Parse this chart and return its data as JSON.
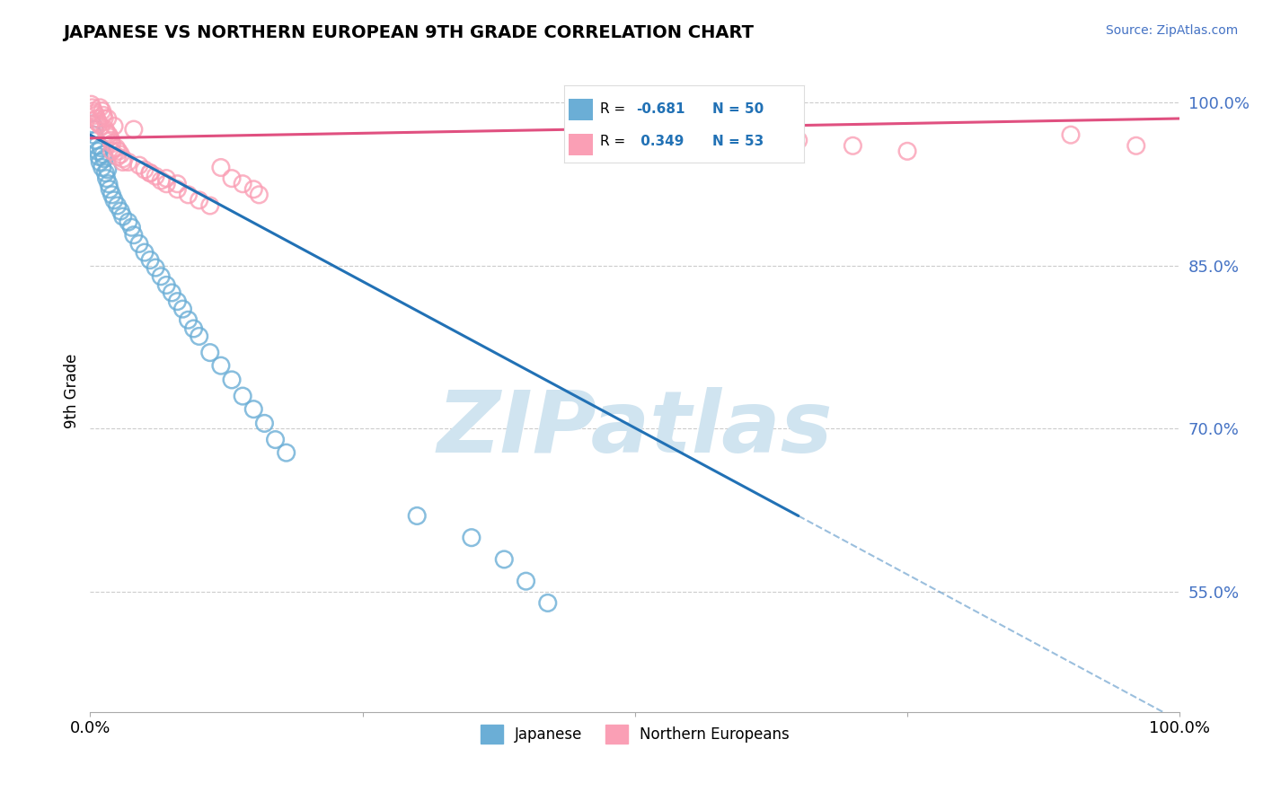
{
  "title": "JAPANESE VS NORTHERN EUROPEAN 9TH GRADE CORRELATION CHART",
  "source": "Source: ZipAtlas.com",
  "ylabel": "9th Grade",
  "xlim": [
    0.0,
    1.0
  ],
  "ylim": [
    0.44,
    1.03
  ],
  "yticks": [
    0.55,
    0.7,
    0.85,
    1.0
  ],
  "ytick_labels": [
    "55.0%",
    "70.0%",
    "85.0%",
    "100.0%"
  ],
  "japanese_R": -0.681,
  "japanese_N": 50,
  "ne_R": 0.349,
  "ne_N": 53,
  "japanese_color": "#6baed6",
  "ne_color": "#fa9fb5",
  "japanese_line_color": "#2171b5",
  "ne_line_color": "#e05080",
  "watermark": "ZIPatlas",
  "watermark_color": "#d0e4f0",
  "background_color": "#ffffff",
  "japanese_x": [
    0.002,
    0.003,
    0.004,
    0.005,
    0.006,
    0.007,
    0.008,
    0.009,
    0.01,
    0.011,
    0.012,
    0.013,
    0.014,
    0.015,
    0.016,
    0.017,
    0.018,
    0.02,
    0.022,
    0.025,
    0.028,
    0.03,
    0.035,
    0.038,
    0.04,
    0.045,
    0.05,
    0.055,
    0.06,
    0.065,
    0.07,
    0.075,
    0.08,
    0.085,
    0.09,
    0.095,
    0.1,
    0.11,
    0.12,
    0.13,
    0.14,
    0.15,
    0.16,
    0.17,
    0.18,
    0.3,
    0.35,
    0.38,
    0.4,
    0.42
  ],
  "japanese_y": [
    0.98,
    0.97,
    0.975,
    0.965,
    0.96,
    0.955,
    0.95,
    0.945,
    0.958,
    0.94,
    0.952,
    0.948,
    0.935,
    0.93,
    0.938,
    0.925,
    0.92,
    0.915,
    0.91,
    0.905,
    0.9,
    0.895,
    0.89,
    0.885,
    0.878,
    0.87,
    0.862,
    0.855,
    0.848,
    0.84,
    0.832,
    0.825,
    0.817,
    0.81,
    0.8,
    0.792,
    0.785,
    0.77,
    0.758,
    0.745,
    0.73,
    0.718,
    0.705,
    0.69,
    0.678,
    0.62,
    0.6,
    0.58,
    0.56,
    0.54
  ],
  "ne_x": [
    0.001,
    0.002,
    0.003,
    0.004,
    0.005,
    0.006,
    0.007,
    0.008,
    0.009,
    0.01,
    0.011,
    0.012,
    0.013,
    0.014,
    0.015,
    0.016,
    0.017,
    0.018,
    0.019,
    0.02,
    0.022,
    0.024,
    0.026,
    0.028,
    0.03,
    0.035,
    0.04,
    0.045,
    0.05,
    0.055,
    0.06,
    0.065,
    0.07,
    0.08,
    0.09,
    0.1,
    0.11,
    0.12,
    0.13,
    0.14,
    0.15,
    0.155,
    0.02,
    0.025,
    0.03,
    0.055,
    0.07,
    0.08,
    0.65,
    0.7,
    0.75,
    0.9,
    0.96
  ],
  "ne_y": [
    0.998,
    0.995,
    0.992,
    0.99,
    0.988,
    0.985,
    0.982,
    0.98,
    0.995,
    0.978,
    0.992,
    0.988,
    0.985,
    0.975,
    0.972,
    0.985,
    0.97,
    0.968,
    0.965,
    0.962,
    0.978,
    0.958,
    0.955,
    0.952,
    0.948,
    0.945,
    0.975,
    0.942,
    0.938,
    0.935,
    0.932,
    0.928,
    0.925,
    0.92,
    0.915,
    0.91,
    0.905,
    0.94,
    0.93,
    0.925,
    0.92,
    0.915,
    0.955,
    0.95,
    0.945,
    0.935,
    0.93,
    0.925,
    0.965,
    0.96,
    0.955,
    0.97,
    0.96
  ]
}
